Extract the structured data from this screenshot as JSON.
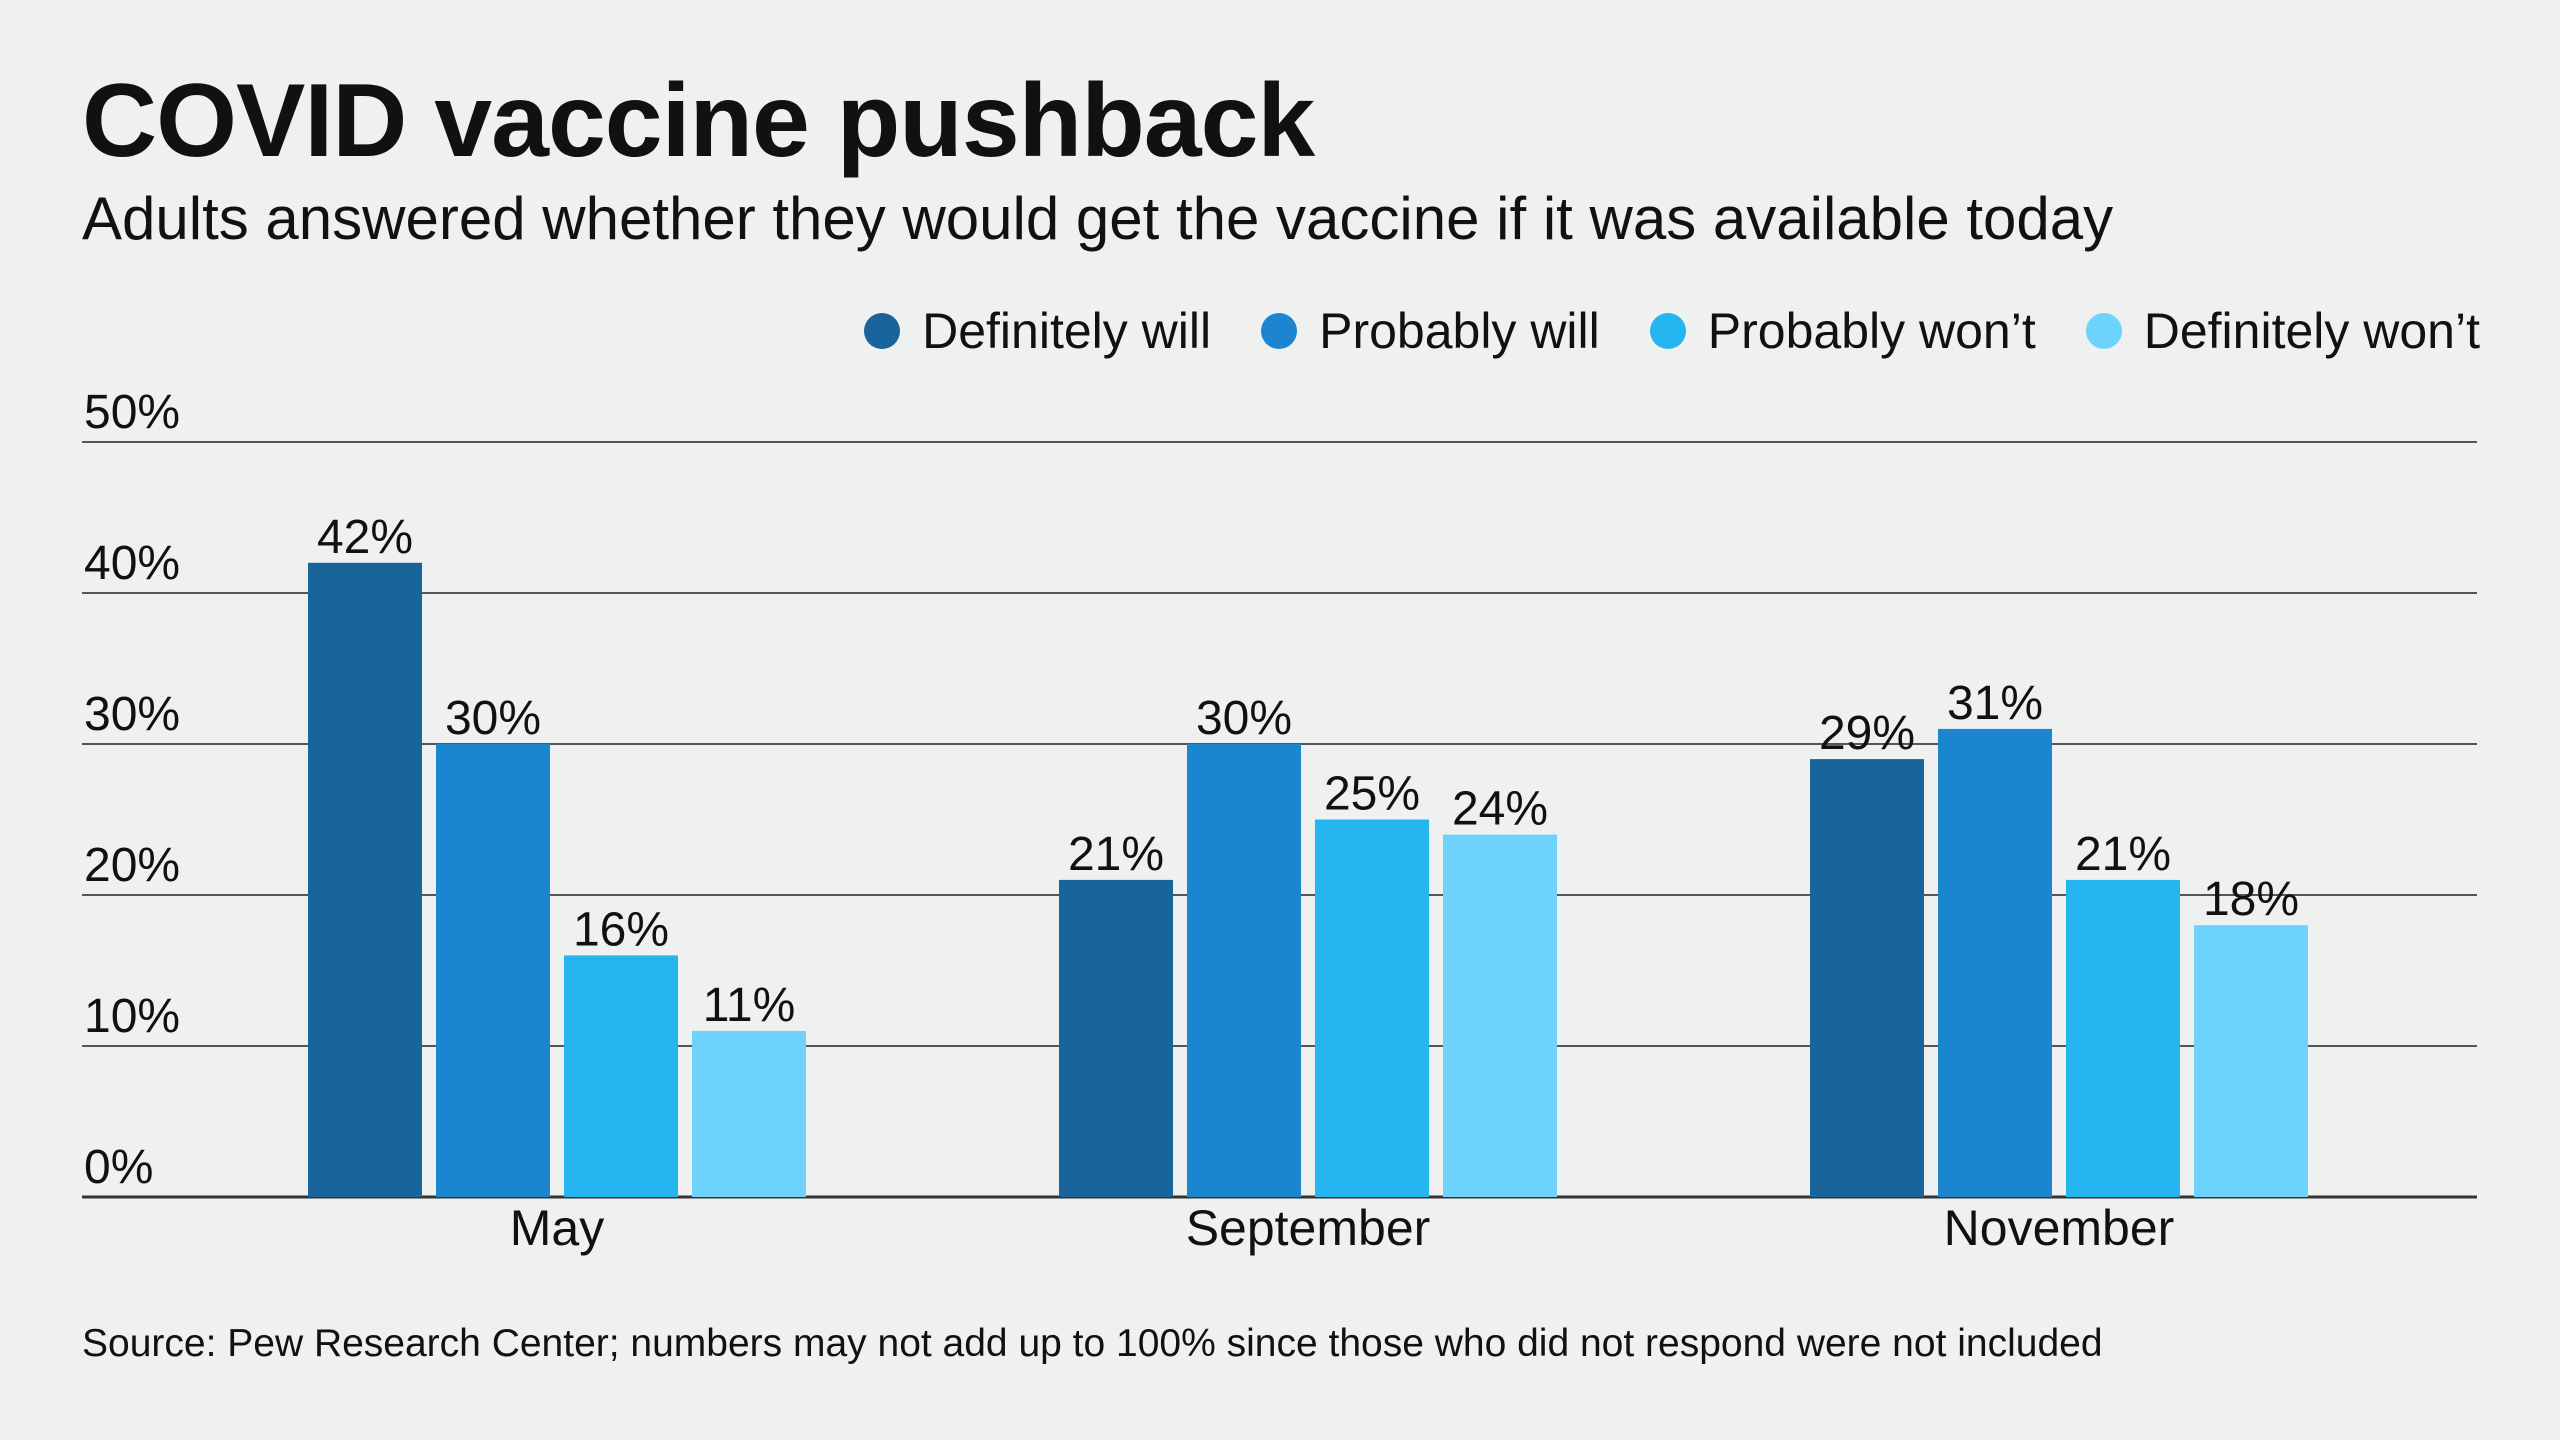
{
  "chart_data": {
    "type": "bar",
    "title": "COVID vaccine pushback",
    "subtitle": "Adults answered whether they would get the vaccine if it was available today",
    "categories": [
      "May",
      "September",
      "November"
    ],
    "series": [
      {
        "name": "Definitely will",
        "color": "#18649b",
        "values": [
          42,
          21,
          29
        ]
      },
      {
        "name": "Probably will",
        "color": "#1b86cf",
        "values": [
          30,
          30,
          31
        ]
      },
      {
        "name": "Probably won’t",
        "color": "#25b6ef",
        "values": [
          16,
          25,
          21
        ]
      },
      {
        "name": "Definitely won’t",
        "color": "#6ed3fc",
        "values": [
          11,
          24,
          18
        ]
      }
    ],
    "yticks": [
      "0%",
      "10%",
      "20%",
      "30%",
      "40%",
      "50%"
    ],
    "ylim": [
      0,
      50
    ],
    "xlabel": "",
    "ylabel": "",
    "grid": true,
    "legend_position": "top-right",
    "source": "Source: Pew Research Center; numbers may not add up to 100% since those who did not respond were not included"
  }
}
